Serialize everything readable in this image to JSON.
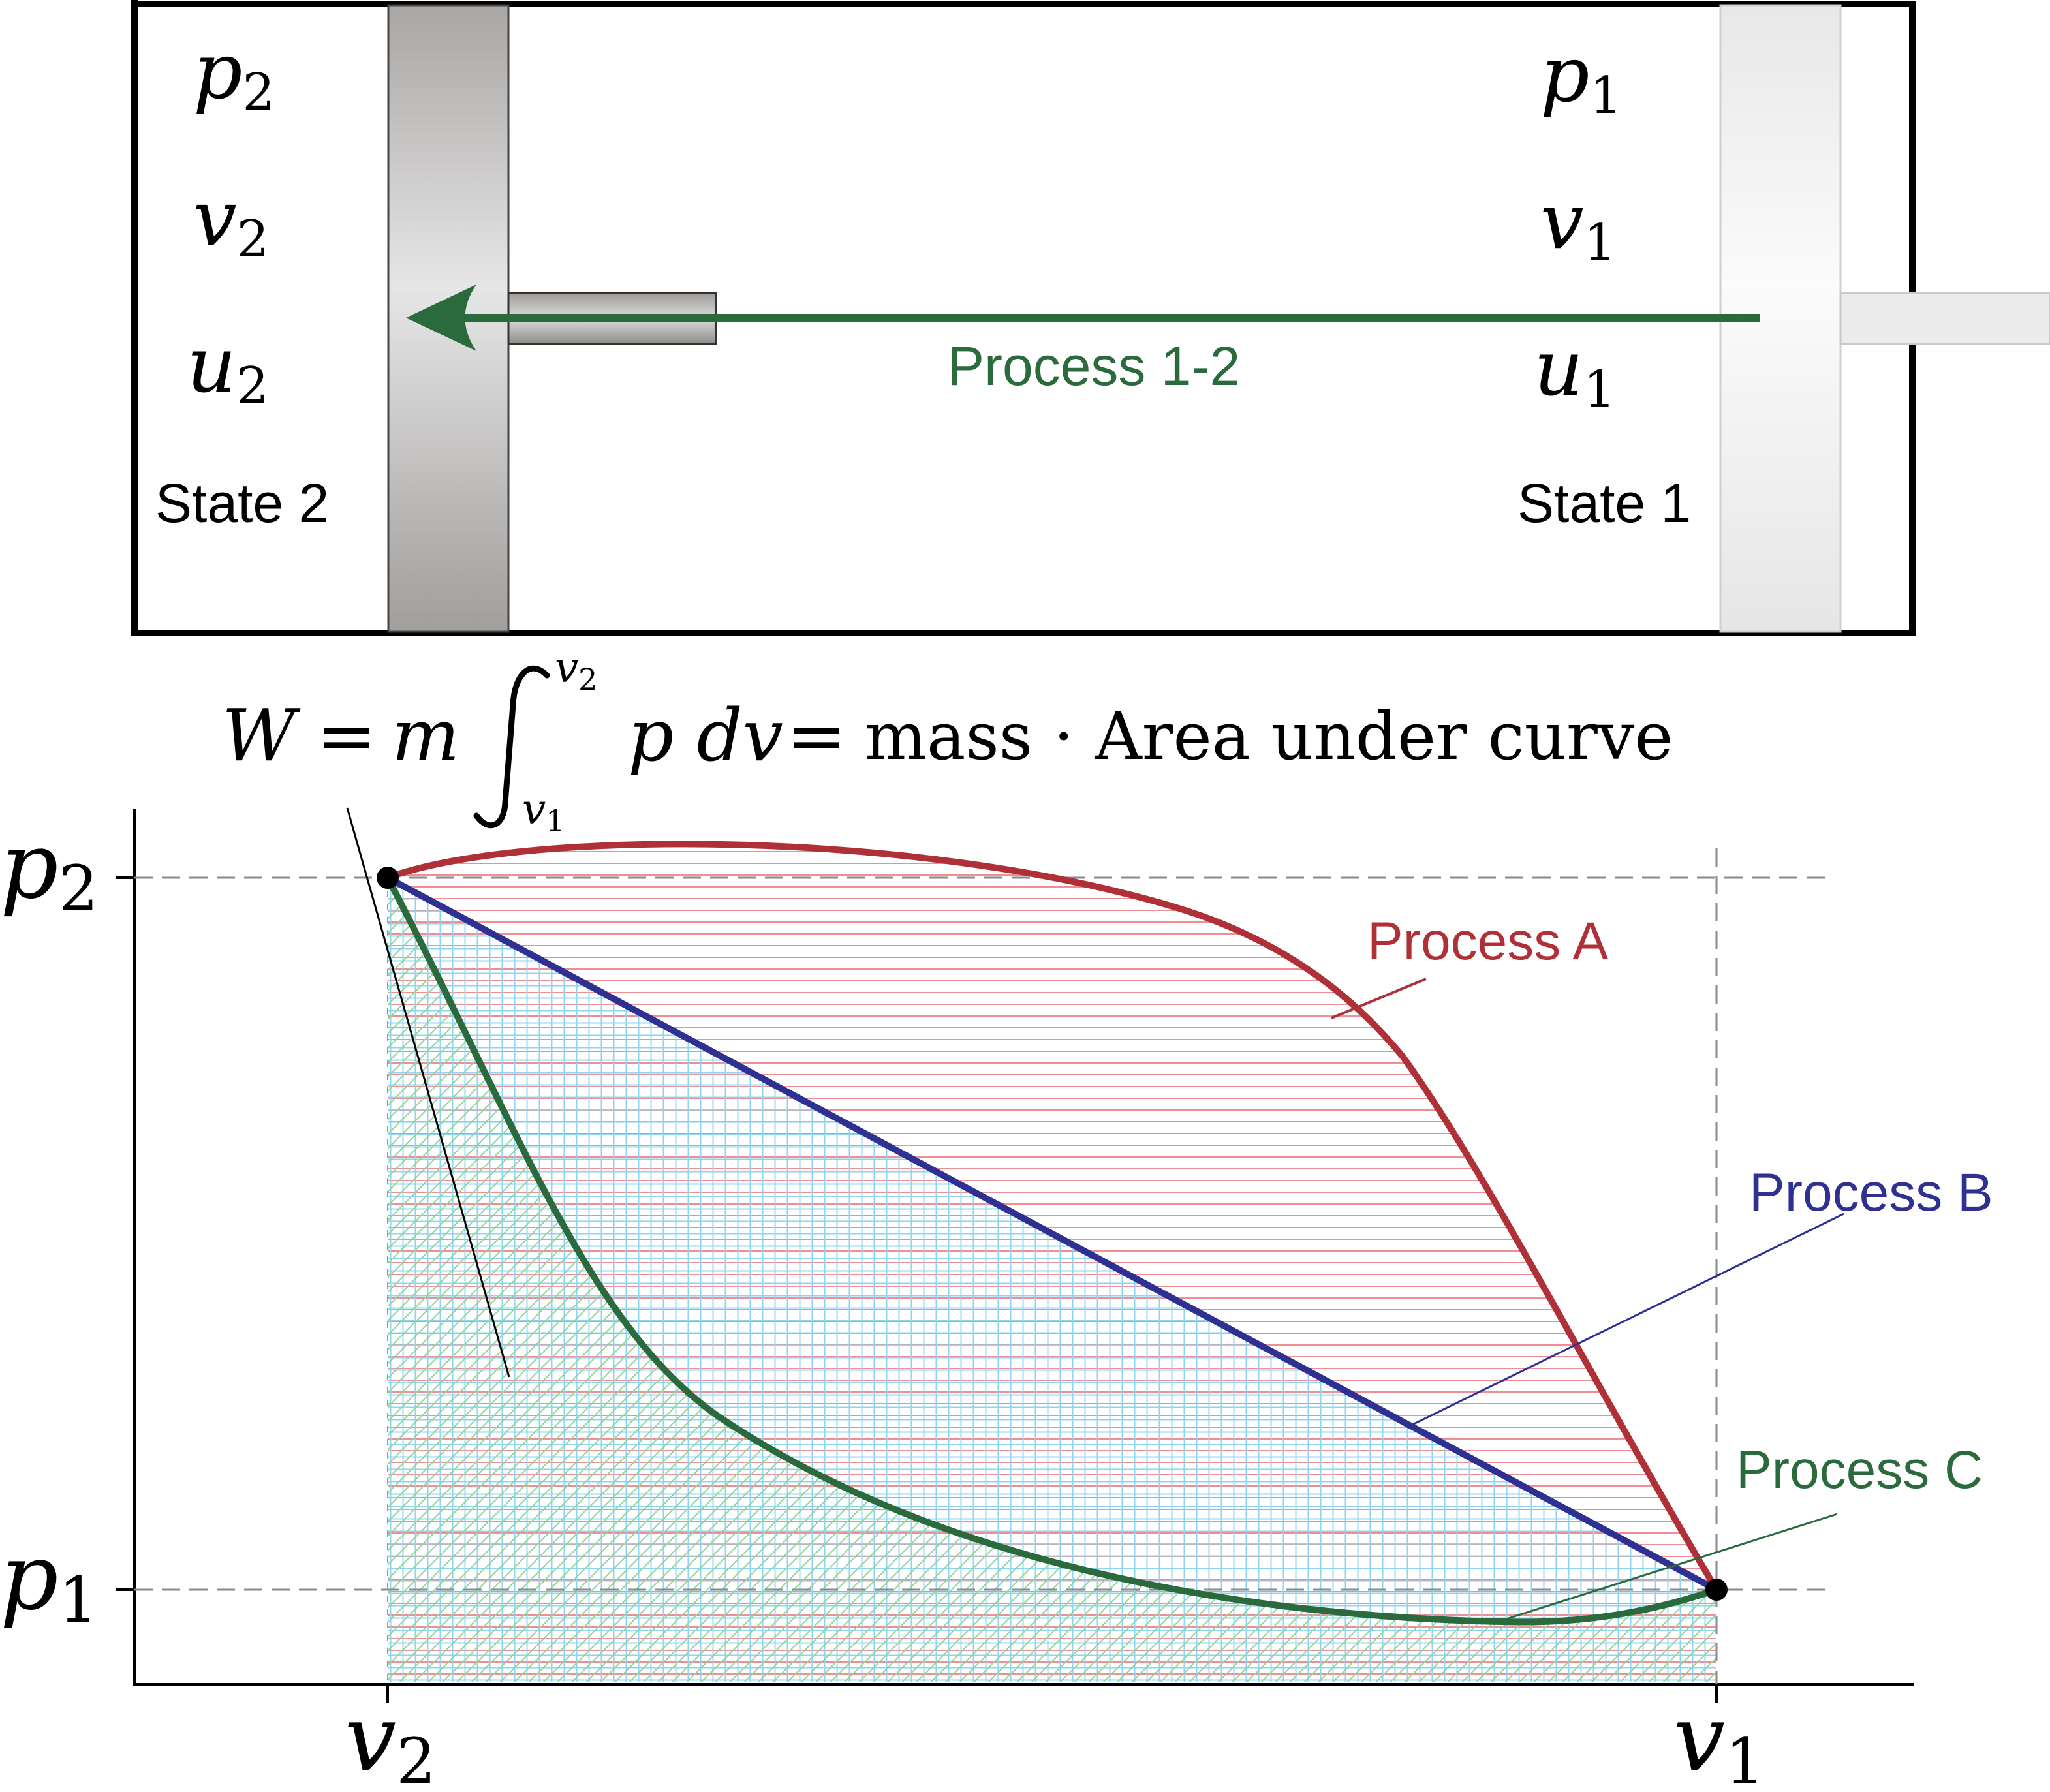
{
  "cylinder": {
    "state2": {
      "p": "p",
      "p_sub": "2",
      "v": "v",
      "v_sub": "2",
      "u": "u",
      "u_sub": "2",
      "label": "State 2"
    },
    "state1": {
      "p": "p",
      "p_sub": "1",
      "v": "v",
      "v_sub": "1",
      "u": "u",
      "u_sub": "1",
      "label": "State 1"
    },
    "process_label": "Process 1-2"
  },
  "equation": {
    "lhs": "W",
    "eq1": "=",
    "m": "m",
    "upper": "v",
    "upper_sub": "2",
    "lower": "v",
    "lower_sub": "1",
    "integrand": "p dv",
    "eq2": "=",
    "rhs": "mass · Area under curve"
  },
  "pv_diagram": {
    "y_ticks": [
      {
        "sym": "p",
        "sub": "2"
      },
      {
        "sym": "p",
        "sub": "1"
      }
    ],
    "x_ticks": [
      {
        "sym": "v",
        "sub": "2"
      },
      {
        "sym": "v",
        "sub": "1"
      }
    ],
    "processes": [
      {
        "name": "Process A",
        "color": "#b03038"
      },
      {
        "name": "Process B",
        "color": "#2e3192"
      },
      {
        "name": "Process C",
        "color": "#2a6a3c"
      }
    ]
  },
  "colors": {
    "arrow": "#2a6a3c",
    "hatch_red": "#ef8e95",
    "hatch_blue": "#8fd4f0",
    "hatch_green": "#8fd69a"
  }
}
